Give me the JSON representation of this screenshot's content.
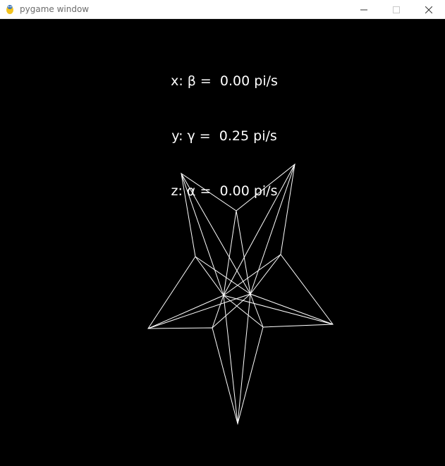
{
  "window": {
    "title": "pygame window",
    "icon": "pygame-snake-icon",
    "controls": [
      "minimize-icon",
      "maximize-icon",
      "close-icon"
    ]
  },
  "hud": {
    "x_line": "x: β =  0.00 pi/s",
    "y_line": "y: γ =  0.25 pi/s",
    "z_line": "z: α =  0.00 pi/s"
  },
  "scene": {
    "background_color": "#000000",
    "line_color": "#ffffff",
    "object": "wireframe-star"
  }
}
